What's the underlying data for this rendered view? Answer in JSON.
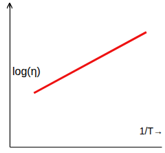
{
  "chart_data": {
    "type": "line",
    "x_label": "1/T→",
    "y_label": "log(η)",
    "x": [
      1.6,
      9.0
    ],
    "values": [
      3.75,
      8.0
    ],
    "color": "#ee1111",
    "xlim": [
      0,
      10
    ],
    "ylim": [
      0,
      10
    ],
    "xticks": [],
    "yticks": [],
    "tick_labels": false
  }
}
